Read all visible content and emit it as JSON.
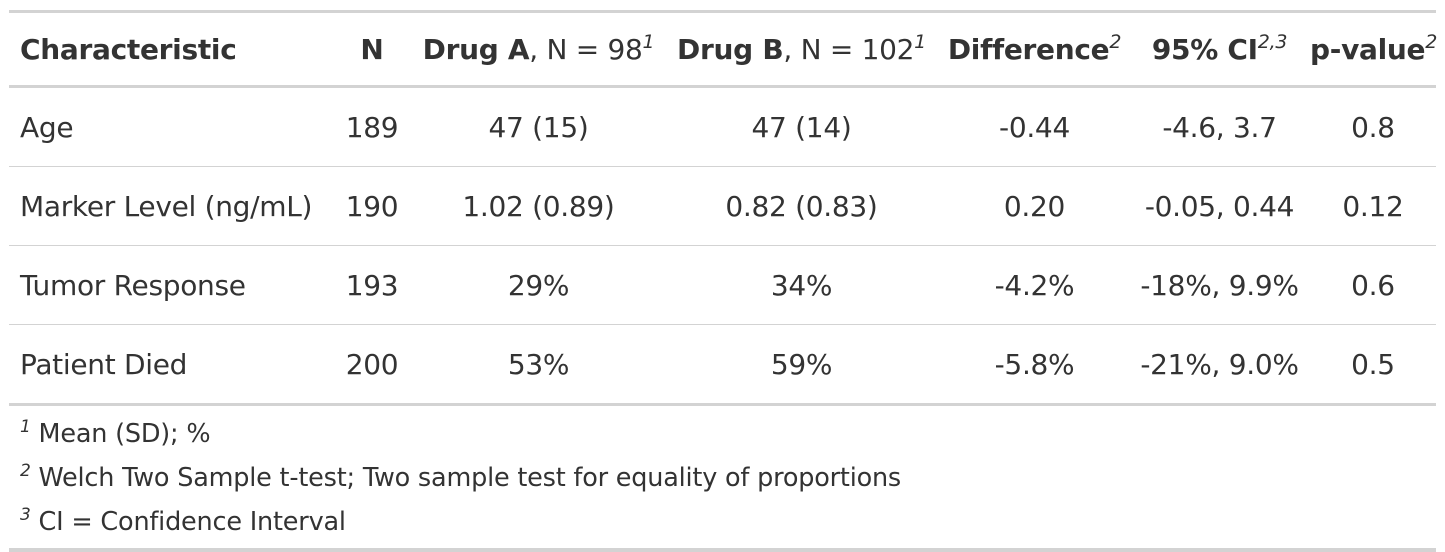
{
  "table": {
    "headers": {
      "characteristic": "Characteristic",
      "n": "N",
      "drug_a_name": "Drug A",
      "drug_a_n": ", N = 98",
      "drug_a_note": "1",
      "drug_b_name": "Drug B",
      "drug_b_n": ", N = 102",
      "drug_b_note": "1",
      "difference": "Difference",
      "difference_note": "2",
      "ci": "95% CI",
      "ci_note": "2,3",
      "pvalue": "p-value",
      "pvalue_note": "2"
    },
    "rows": [
      {
        "characteristic": "Age",
        "n": "189",
        "drug_a": "47 (15)",
        "drug_b": "47 (14)",
        "difference": "-0.44",
        "ci": "-4.6, 3.7",
        "pvalue": "0.8"
      },
      {
        "characteristic": "Marker Level (ng/mL)",
        "n": "190",
        "drug_a": "1.02 (0.89)",
        "drug_b": "0.82 (0.83)",
        "difference": "0.20",
        "ci": "-0.05, 0.44",
        "pvalue": "0.12"
      },
      {
        "characteristic": "Tumor Response",
        "n": "193",
        "drug_a": "29%",
        "drug_b": "34%",
        "difference": "-4.2%",
        "ci": "-18%, 9.9%",
        "pvalue": "0.6"
      },
      {
        "characteristic": "Patient Died",
        "n": "200",
        "drug_a": "53%",
        "drug_b": "59%",
        "difference": "-5.8%",
        "ci": "-21%, 9.0%",
        "pvalue": "0.5"
      }
    ],
    "footnotes": [
      {
        "mark": "1",
        "text": "Mean (SD); %"
      },
      {
        "mark": "2",
        "text": "Welch Two Sample t-test; Two sample test for equality of proportions"
      },
      {
        "mark": "3",
        "text": "CI = Confidence Interval"
      }
    ]
  }
}
